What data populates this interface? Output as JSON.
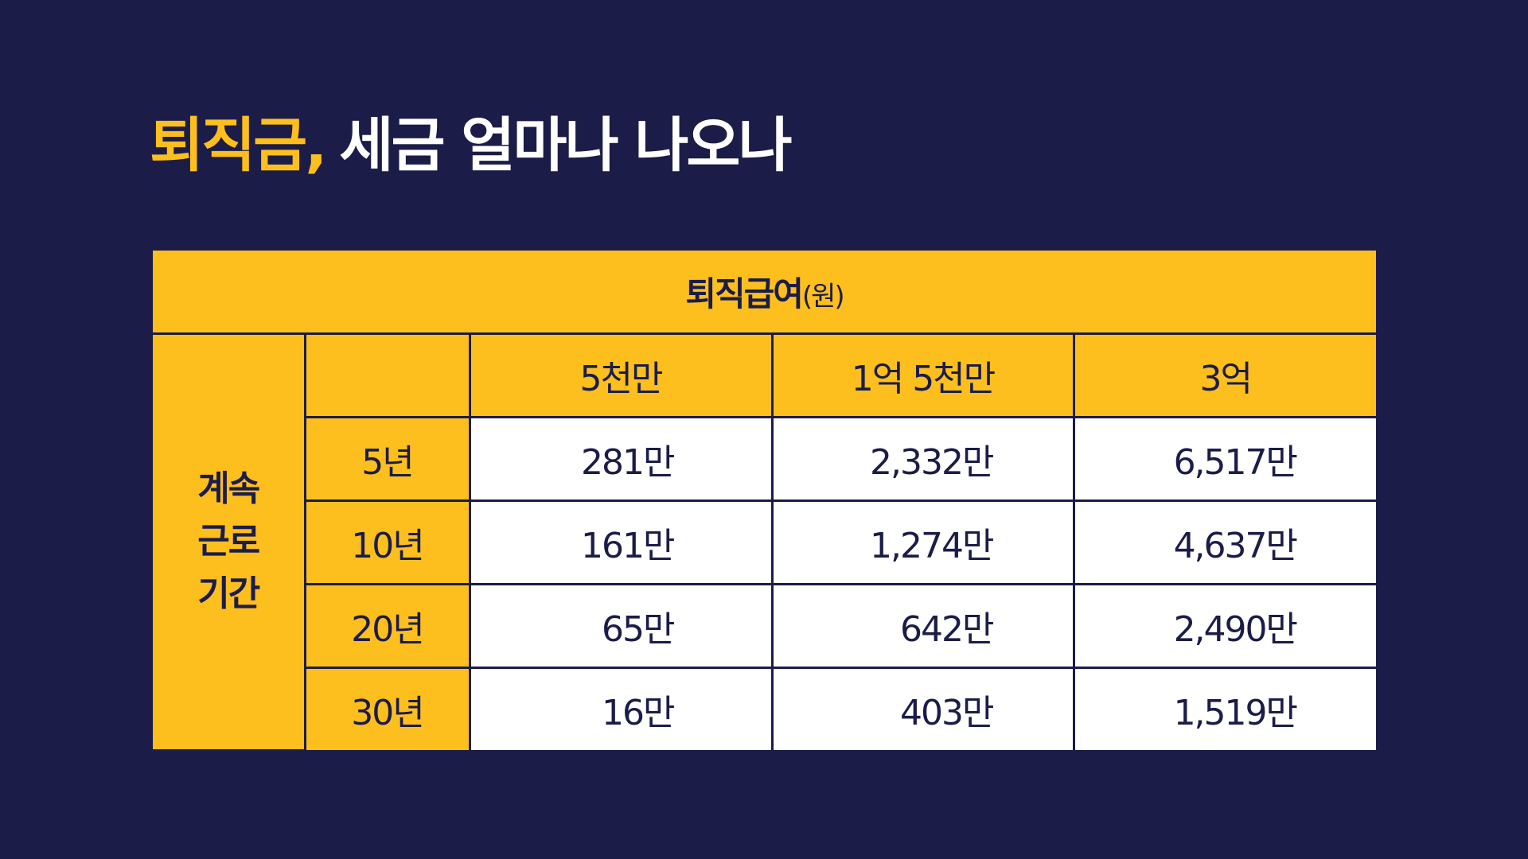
{
  "title": {
    "highlight": "퇴직금,",
    "rest": "세금 얼마나 나오나"
  },
  "table": {
    "header": {
      "main": "퇴직급여",
      "unit": "(원)"
    },
    "row_group": [
      "계속",
      "근로",
      "기간"
    ],
    "columns": [
      "5천만",
      "1억 5천만",
      "3억"
    ],
    "rows": [
      [
        "5년",
        "281만",
        "2,332만",
        "6,517만"
      ],
      [
        "10년",
        "161만",
        "1,274만",
        "4,637만"
      ],
      [
        "20년",
        "65만",
        "642만",
        "2,490만"
      ],
      [
        "30년",
        "16만",
        "403만",
        "1,519만"
      ]
    ]
  }
}
